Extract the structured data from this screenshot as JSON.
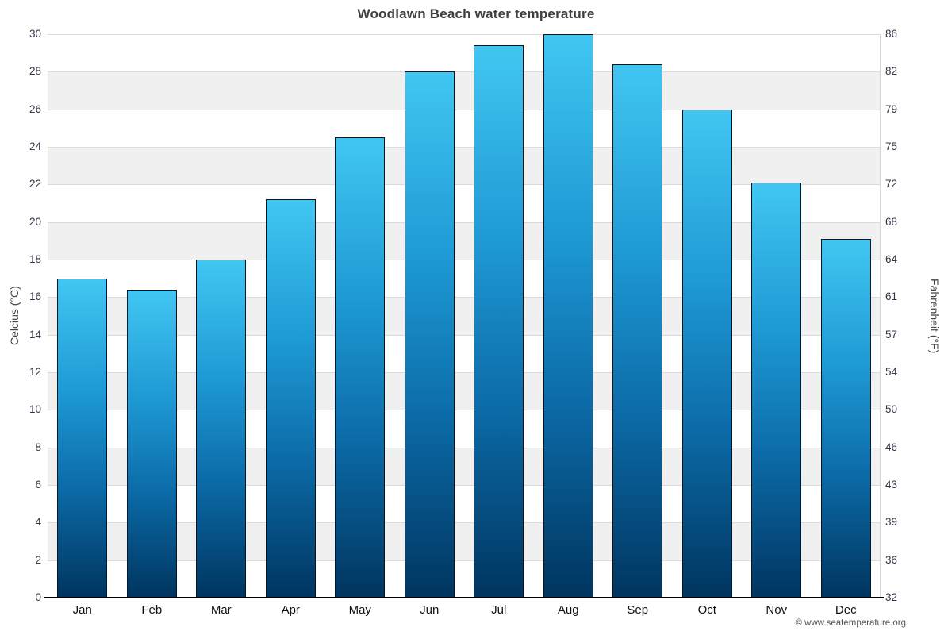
{
  "title": "Woodlawn Beach water temperature",
  "chart_data": {
    "type": "bar",
    "title": "Woodlawn Beach water temperature",
    "categories": [
      "Jan",
      "Feb",
      "Mar",
      "Apr",
      "May",
      "Jun",
      "Jul",
      "Aug",
      "Sep",
      "Oct",
      "Nov",
      "Dec"
    ],
    "values": [
      17.0,
      16.4,
      18.0,
      21.2,
      24.5,
      28.0,
      29.4,
      30.0,
      28.4,
      26.0,
      22.1,
      19.1
    ],
    "ylabel_left": "Celcius (°C)",
    "ylabel_right": "Fahrenheit (°F)",
    "ylim": [
      0,
      30
    ],
    "y_ticks_celsius": [
      0,
      2,
      4,
      6,
      8,
      10,
      12,
      14,
      16,
      18,
      20,
      22,
      24,
      26,
      28,
      30
    ],
    "y_ticks_fahrenheit": [
      32,
      36,
      39,
      43,
      46,
      50,
      54,
      57,
      61,
      64,
      68,
      72,
      75,
      79,
      82,
      86
    ],
    "grid": true,
    "legend": false,
    "colors": {
      "bar_gradient_top": "#41c6f2",
      "bar_gradient_bottom": "#003560",
      "band_fill": "#f0f0f0",
      "axis_line": "#000000",
      "title_text": "#3f3f3f",
      "tick_text": "#35354a"
    }
  },
  "footer": {
    "copyright": "© www.seatemperature.org"
  }
}
